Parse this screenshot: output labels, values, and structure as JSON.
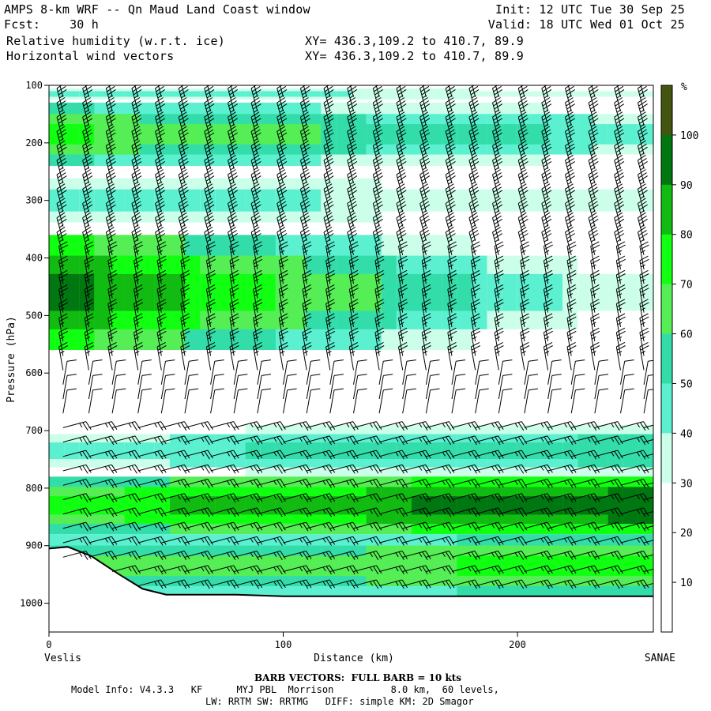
{
  "header": {
    "title": "AMPS 8-km WRF -- Qn Maud Land Coast window",
    "fcst": "Fcst:    30 h",
    "field1": "Relative humidity (w.r.t. ice)",
    "field2": "Horizontal wind vectors",
    "xy1": "XY= 436.3,109.2 to 410.7, 89.9",
    "xy2": "XY= 436.3,109.2 to 410.7, 89.9",
    "init": "Init: 12 UTC Tue 30 Sep 25",
    "valid": "Valid: 18 UTC Wed 01 Oct 25"
  },
  "footer": {
    "barb": "BARB VECTORS:  FULL BARB = 10 kts",
    "model1": "Model Info: V4.3.3   KF      MYJ PBL  Morrison          8.0 km,  60 levels,",
    "model2": "LW: RRTM SW: RRTMG   DIFF: simple KM: 2D Smagor"
  },
  "colors": {
    "c10_20": "#ffffff",
    "c20_30": "#ffffff",
    "c30_40": "#ccffea",
    "c40_50": "#5bf0d0",
    "c50_60": "#33ddaa",
    "c60_70": "#55ee55",
    "c70_80": "#11ff11",
    "c80_90": "#11bb11",
    "c90_100": "#007711",
    "c100": "#445511",
    "terrain": "#000000",
    "barb": "#000000"
  },
  "chart_data": {
    "type": "heatmap",
    "title": "Relative humidity (w.r.t. ice) and horizontal wind vectors cross-section",
    "xlabel": "Distance (km)",
    "ylabel": "Pressure (hPa)",
    "xlim": [
      0,
      258
    ],
    "ylim": [
      1050,
      100
    ],
    "x_ticks": [
      0,
      100,
      200
    ],
    "y_ticks": [
      100,
      200,
      300,
      400,
      500,
      600,
      700,
      800,
      900,
      1000
    ],
    "x_start_label": "Veslis",
    "x_end_label": "SANAE",
    "colorbar": {
      "unit": "%",
      "levels": [
        10,
        20,
        30,
        40,
        50,
        60,
        70,
        80,
        90,
        100
      ]
    },
    "terrain_surface_hPa": {
      "x_km": [
        0,
        8,
        18,
        30,
        40,
        50,
        80,
        100,
        258
      ],
      "p_hPa": [
        905,
        902,
        918,
        950,
        975,
        985,
        985,
        988,
        988
      ]
    },
    "rh_layers": [
      {
        "p_top": 100,
        "p_bottom": 130,
        "rh_west": 45,
        "rh_east": 35
      },
      {
        "p_top": 130,
        "p_bottom": 240,
        "rh_west": 72,
        "rh_east": 45
      },
      {
        "p_top": 240,
        "p_bottom": 360,
        "rh_west": 48,
        "rh_east": 30
      },
      {
        "p_top": 360,
        "p_bottom": 560,
        "rh_west": 95,
        "rh_east": 30
      },
      {
        "p_top": 560,
        "p_bottom": 690,
        "rh_west": 20,
        "rh_east": 25
      },
      {
        "p_top": 690,
        "p_bottom": 780,
        "rh_west": 45,
        "rh_east": 60
      },
      {
        "p_top": 780,
        "p_bottom": 880,
        "rh_west": 75,
        "rh_east": 100
      },
      {
        "p_top": 880,
        "p_bottom": 990,
        "rh_west": 60,
        "rh_east": 75
      }
    ],
    "wind": {
      "levels_hPa": [
        120,
        145,
        170,
        195,
        220,
        245,
        270,
        295,
        320,
        345,
        370,
        395,
        420,
        445,
        470,
        495,
        520,
        545,
        570,
        595,
        620,
        645,
        670,
        695,
        720,
        745,
        770,
        795,
        820,
        845,
        870,
        895,
        920,
        945,
        970
      ],
      "columns_km": [
        6,
        17,
        27,
        38,
        48,
        58,
        69,
        79,
        89,
        100,
        110,
        120,
        130,
        141,
        151,
        161,
        172,
        182,
        192,
        203,
        213,
        223,
        233,
        244,
        254
      ],
      "upper_kts": 35,
      "mid_kts": 10,
      "low_kts": 25
    }
  }
}
